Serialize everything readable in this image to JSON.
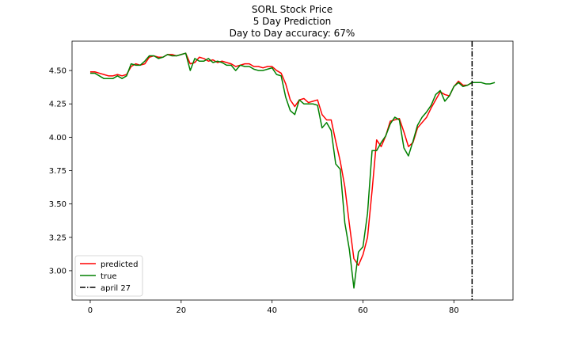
{
  "chart_data": {
    "type": "line",
    "title_lines": [
      "SORL Stock Price",
      "5 Day Prediction",
      "Day to Day accuracy: 67%"
    ],
    "xlabel": "",
    "ylabel": "",
    "xlim": [
      -4,
      93
    ],
    "ylim": [
      2.78,
      4.72
    ],
    "x_ticks": [
      0,
      20,
      40,
      60,
      80
    ],
    "y_ticks": [
      3.0,
      3.25,
      3.5,
      3.75,
      4.0,
      4.25,
      4.5
    ],
    "y_tick_labels": [
      "3.00",
      "3.25",
      "3.50",
      "3.75",
      "4.00",
      "4.25",
      "4.50"
    ],
    "grid": false,
    "legend_position": "lower-left",
    "series": [
      {
        "name": "predicted",
        "color": "#ff0000",
        "x": [
          0,
          1,
          2,
          3,
          4,
          5,
          6,
          7,
          8,
          9,
          10,
          11,
          12,
          13,
          14,
          15,
          16,
          17,
          18,
          19,
          20,
          21,
          22,
          23,
          24,
          25,
          26,
          27,
          28,
          29,
          30,
          31,
          32,
          33,
          34,
          35,
          36,
          37,
          38,
          39,
          40,
          41,
          42,
          43,
          44,
          45,
          46,
          47,
          48,
          49,
          50,
          51,
          52,
          53,
          54,
          55,
          56,
          57,
          58,
          59,
          60,
          61,
          62,
          63,
          64,
          65,
          66,
          67,
          68,
          69,
          70,
          71,
          72,
          73,
          74,
          75,
          76,
          77,
          78,
          79,
          80,
          81,
          82,
          83,
          84
        ],
        "values": [
          4.49,
          4.49,
          4.48,
          4.47,
          4.46,
          4.46,
          4.47,
          4.46,
          4.47,
          4.53,
          4.55,
          4.54,
          4.55,
          4.6,
          4.61,
          4.6,
          4.6,
          4.62,
          4.62,
          4.61,
          4.62,
          4.63,
          4.55,
          4.56,
          4.6,
          4.59,
          4.57,
          4.58,
          4.56,
          4.57,
          4.56,
          4.55,
          4.53,
          4.54,
          4.55,
          4.55,
          4.53,
          4.53,
          4.52,
          4.53,
          4.53,
          4.5,
          4.48,
          4.4,
          4.28,
          4.23,
          4.28,
          4.29,
          4.26,
          4.27,
          4.28,
          4.17,
          4.13,
          4.13,
          3.97,
          3.82,
          3.63,
          3.35,
          3.09,
          3.04,
          3.12,
          3.25,
          3.6,
          3.98,
          3.93,
          4.01,
          4.12,
          4.13,
          4.14,
          4.04,
          3.93,
          3.96,
          4.07,
          4.11,
          4.15,
          4.22,
          4.28,
          4.34,
          4.32,
          4.31,
          4.38,
          4.42,
          4.39,
          4.39,
          4.41
        ]
      },
      {
        "name": "true",
        "color": "#008000",
        "x": [
          0,
          1,
          2,
          3,
          4,
          5,
          6,
          7,
          8,
          9,
          10,
          11,
          12,
          13,
          14,
          15,
          16,
          17,
          18,
          19,
          20,
          21,
          22,
          23,
          24,
          25,
          26,
          27,
          28,
          29,
          30,
          31,
          32,
          33,
          34,
          35,
          36,
          37,
          38,
          39,
          40,
          41,
          42,
          43,
          44,
          45,
          46,
          47,
          48,
          49,
          50,
          51,
          52,
          53,
          54,
          55,
          56,
          57,
          58,
          59,
          60,
          61,
          62,
          63,
          64,
          65,
          66,
          67,
          68,
          69,
          70,
          71,
          72,
          73,
          74,
          75,
          76,
          77,
          78,
          79,
          80,
          81,
          82,
          83,
          84,
          85,
          86,
          87,
          88,
          89
        ],
        "values": [
          4.48,
          4.48,
          4.46,
          4.44,
          4.44,
          4.44,
          4.46,
          4.44,
          4.46,
          4.55,
          4.54,
          4.54,
          4.57,
          4.61,
          4.61,
          4.59,
          4.6,
          4.62,
          4.61,
          4.61,
          4.62,
          4.63,
          4.5,
          4.59,
          4.57,
          4.57,
          4.59,
          4.56,
          4.57,
          4.56,
          4.54,
          4.54,
          4.5,
          4.54,
          4.53,
          4.53,
          4.51,
          4.5,
          4.5,
          4.51,
          4.52,
          4.47,
          4.46,
          4.3,
          4.2,
          4.17,
          4.28,
          4.25,
          4.25,
          4.25,
          4.24,
          4.07,
          4.11,
          4.05,
          3.8,
          3.76,
          3.36,
          3.16,
          2.87,
          3.14,
          3.18,
          3.43,
          3.9,
          3.9,
          3.96,
          4.01,
          4.1,
          4.15,
          4.13,
          3.92,
          3.86,
          3.97,
          4.09,
          4.15,
          4.19,
          4.24,
          4.32,
          4.35,
          4.27,
          4.31,
          4.38,
          4.41,
          4.38,
          4.39,
          4.41,
          4.41,
          4.41,
          4.4,
          4.4,
          4.41
        ]
      }
    ],
    "vline": {
      "name": "april 27",
      "x": 84,
      "color": "#000000",
      "style": "dashdot"
    }
  }
}
